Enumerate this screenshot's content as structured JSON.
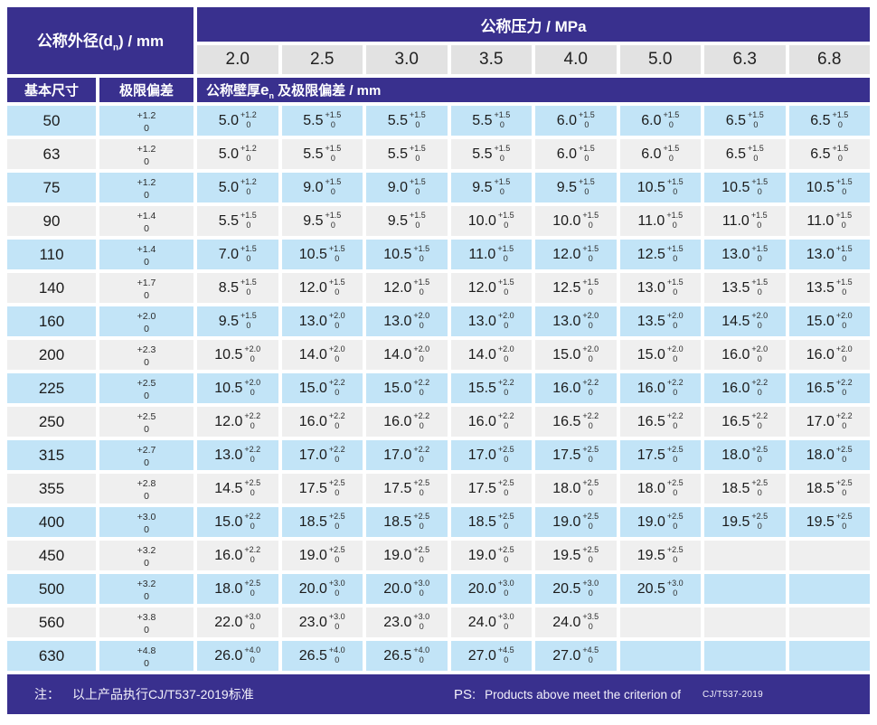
{
  "colors": {
    "header_bg": "#39308e",
    "row_blue": "#c2e4f7",
    "row_gray": "#efefef",
    "pressure_bg": "#e2e2e2"
  },
  "table": {
    "header": {
      "od_prefix": "公称外径(d",
      "od_sub": "n",
      "od_suffix": ") / mm",
      "pressure_title": "公称压力 / MPa",
      "pressures": [
        "2.0",
        "2.5",
        "3.0",
        "3.5",
        "4.0",
        "5.0",
        "6.3",
        "6.8"
      ],
      "basic_size": "基本尺寸",
      "limit_dev": "极限偏差",
      "wall_prefix": "公称壁厚",
      "wall_e": "e",
      "wall_sub": "n",
      "wall_suffix": " 及极限偏差 / mm"
    },
    "rows": [
      {
        "dn": "50",
        "dev_plus": "+1.2",
        "dev_zero": "0",
        "cells": [
          {
            "v": "5.0",
            "t": "+1.2",
            "b": "0"
          },
          {
            "v": "5.5",
            "t": "+1.5",
            "b": "0"
          },
          {
            "v": "5.5",
            "t": "+1.5",
            "b": "0"
          },
          {
            "v": "5.5",
            "t": "+1.5",
            "b": "0"
          },
          {
            "v": "6.0",
            "t": "+1.5",
            "b": "0"
          },
          {
            "v": "6.0",
            "t": "+1.5",
            "b": "0"
          },
          {
            "v": "6.5",
            "t": "+1.5",
            "b": "0"
          },
          {
            "v": "6.5",
            "t": "+1.5",
            "b": "0"
          }
        ]
      },
      {
        "dn": "63",
        "dev_plus": "+1.2",
        "dev_zero": "0",
        "cells": [
          {
            "v": "5.0",
            "t": "+1.2",
            "b": "0"
          },
          {
            "v": "5.5",
            "t": "+1.5",
            "b": "0"
          },
          {
            "v": "5.5",
            "t": "+1.5",
            "b": "0"
          },
          {
            "v": "5.5",
            "t": "+1.5",
            "b": "0"
          },
          {
            "v": "6.0",
            "t": "+1.5",
            "b": "0"
          },
          {
            "v": "6.0",
            "t": "+1.5",
            "b": "0"
          },
          {
            "v": "6.5",
            "t": "+1.5",
            "b": "0"
          },
          {
            "v": "6.5",
            "t": "+1.5",
            "b": "0"
          }
        ]
      },
      {
        "dn": "75",
        "dev_plus": "+1.2",
        "dev_zero": "0",
        "cells": [
          {
            "v": "5.0",
            "t": "+1.2",
            "b": "0"
          },
          {
            "v": "9.0",
            "t": "+1.5",
            "b": "0"
          },
          {
            "v": "9.0",
            "t": "+1.5",
            "b": "0"
          },
          {
            "v": "9.5",
            "t": "+1.5",
            "b": "0"
          },
          {
            "v": "9.5",
            "t": "+1.5",
            "b": "0"
          },
          {
            "v": "10.5",
            "t": "+1.5",
            "b": "0"
          },
          {
            "v": "10.5",
            "t": "+1.5",
            "b": "0"
          },
          {
            "v": "10.5",
            "t": "+1.5",
            "b": "0"
          }
        ]
      },
      {
        "dn": "90",
        "dev_plus": "+1.4",
        "dev_zero": "0",
        "cells": [
          {
            "v": "5.5",
            "t": "+1.5",
            "b": "0"
          },
          {
            "v": "9.5",
            "t": "+1.5",
            "b": "0"
          },
          {
            "v": "9.5",
            "t": "+1.5",
            "b": "0"
          },
          {
            "v": "10.0",
            "t": "+1.5",
            "b": "0"
          },
          {
            "v": "10.0",
            "t": "+1.5",
            "b": "0"
          },
          {
            "v": "11.0",
            "t": "+1.5",
            "b": "0"
          },
          {
            "v": "11.0",
            "t": "+1.5",
            "b": "0"
          },
          {
            "v": "11.0",
            "t": "+1.5",
            "b": "0"
          }
        ]
      },
      {
        "dn": "110",
        "dev_plus": "+1.4",
        "dev_zero": "0",
        "cells": [
          {
            "v": "7.0",
            "t": "+1.5",
            "b": "0"
          },
          {
            "v": "10.5",
            "t": "+1.5",
            "b": "0"
          },
          {
            "v": "10.5",
            "t": "+1.5",
            "b": "0"
          },
          {
            "v": "11.0",
            "t": "+1.5",
            "b": "0"
          },
          {
            "v": "12.0",
            "t": "+1.5",
            "b": "0"
          },
          {
            "v": "12.5",
            "t": "+1.5",
            "b": "0"
          },
          {
            "v": "13.0",
            "t": "+1.5",
            "b": "0"
          },
          {
            "v": "13.0",
            "t": "+1.5",
            "b": "0"
          }
        ]
      },
      {
        "dn": "140",
        "dev_plus": "+1.7",
        "dev_zero": "0",
        "cells": [
          {
            "v": "8.5",
            "t": "+1.5",
            "b": "0"
          },
          {
            "v": "12.0",
            "t": "+1.5",
            "b": "0"
          },
          {
            "v": "12.0",
            "t": "+1.5",
            "b": "0"
          },
          {
            "v": "12.0",
            "t": "+1.5",
            "b": "0"
          },
          {
            "v": "12.5",
            "t": "+1.5",
            "b": "0"
          },
          {
            "v": "13.0",
            "t": "+1.5",
            "b": "0"
          },
          {
            "v": "13.5",
            "t": "+1.5",
            "b": "0"
          },
          {
            "v": "13.5",
            "t": "+1.5",
            "b": "0"
          }
        ]
      },
      {
        "dn": "160",
        "dev_plus": "+2.0",
        "dev_zero": "0",
        "cells": [
          {
            "v": "9.5",
            "t": "+1.5",
            "b": "0"
          },
          {
            "v": "13.0",
            "t": "+2.0",
            "b": "0"
          },
          {
            "v": "13.0",
            "t": "+2.0",
            "b": "0"
          },
          {
            "v": "13.0",
            "t": "+2.0",
            "b": "0"
          },
          {
            "v": "13.0",
            "t": "+2.0",
            "b": "0"
          },
          {
            "v": "13.5",
            "t": "+2.0",
            "b": "0"
          },
          {
            "v": "14.5",
            "t": "+2.0",
            "b": "0"
          },
          {
            "v": "15.0",
            "t": "+2.0",
            "b": "0"
          }
        ]
      },
      {
        "dn": "200",
        "dev_plus": "+2.3",
        "dev_zero": "0",
        "cells": [
          {
            "v": "10.5",
            "t": "+2.0",
            "b": "0"
          },
          {
            "v": "14.0",
            "t": "+2.0",
            "b": "0"
          },
          {
            "v": "14.0",
            "t": "+2.0",
            "b": "0"
          },
          {
            "v": "14.0",
            "t": "+2.0",
            "b": "0"
          },
          {
            "v": "15.0",
            "t": "+2.0",
            "b": "0"
          },
          {
            "v": "15.0",
            "t": "+2.0",
            "b": "0"
          },
          {
            "v": "16.0",
            "t": "+2.0",
            "b": "0"
          },
          {
            "v": "16.0",
            "t": "+2.0",
            "b": "0"
          }
        ]
      },
      {
        "dn": "225",
        "dev_plus": "+2.5",
        "dev_zero": "0",
        "cells": [
          {
            "v": "10.5",
            "t": "+2.0",
            "b": "0"
          },
          {
            "v": "15.0",
            "t": "+2.2",
            "b": "0"
          },
          {
            "v": "15.0",
            "t": "+2.2",
            "b": "0"
          },
          {
            "v": "15.5",
            "t": "+2.2",
            "b": "0"
          },
          {
            "v": "16.0",
            "t": "+2.2",
            "b": "0"
          },
          {
            "v": "16.0",
            "t": "+2.2",
            "b": "0"
          },
          {
            "v": "16.0",
            "t": "+2.2",
            "b": "0"
          },
          {
            "v": "16.5",
            "t": "+2.2",
            "b": "0"
          }
        ]
      },
      {
        "dn": "250",
        "dev_plus": "+2.5",
        "dev_zero": "0",
        "cells": [
          {
            "v": "12.0",
            "t": "+2.2",
            "b": "0"
          },
          {
            "v": "16.0",
            "t": "+2.2",
            "b": "0"
          },
          {
            "v": "16.0",
            "t": "+2.2",
            "b": "0"
          },
          {
            "v": "16.0",
            "t": "+2.2",
            "b": "0"
          },
          {
            "v": "16.5",
            "t": "+2.2",
            "b": "0"
          },
          {
            "v": "16.5",
            "t": "+2.2",
            "b": "0"
          },
          {
            "v": "16.5",
            "t": "+2.2",
            "b": "0"
          },
          {
            "v": "17.0",
            "t": "+2.2",
            "b": "0"
          }
        ]
      },
      {
        "dn": "315",
        "dev_plus": "+2.7",
        "dev_zero": "0",
        "cells": [
          {
            "v": "13.0",
            "t": "+2.2",
            "b": "0"
          },
          {
            "v": "17.0",
            "t": "+2.2",
            "b": "0"
          },
          {
            "v": "17.0",
            "t": "+2.2",
            "b": "0"
          },
          {
            "v": "17.0",
            "t": "+2.5",
            "b": "0"
          },
          {
            "v": "17.5",
            "t": "+2.5",
            "b": "0"
          },
          {
            "v": "17.5",
            "t": "+2.5",
            "b": "0"
          },
          {
            "v": "18.0",
            "t": "+2.5",
            "b": "0"
          },
          {
            "v": "18.0",
            "t": "+2.5",
            "b": "0"
          }
        ]
      },
      {
        "dn": "355",
        "dev_plus": "+2.8",
        "dev_zero": "0",
        "cells": [
          {
            "v": "14.5",
            "t": "+2.5",
            "b": "0"
          },
          {
            "v": "17.5",
            "t": "+2.5",
            "b": "0"
          },
          {
            "v": "17.5",
            "t": "+2.5",
            "b": "0"
          },
          {
            "v": "17.5",
            "t": "+2.5",
            "b": "0"
          },
          {
            "v": "18.0",
            "t": "+2.5",
            "b": "0"
          },
          {
            "v": "18.0",
            "t": "+2.5",
            "b": "0"
          },
          {
            "v": "18.5",
            "t": "+2.5",
            "b": "0"
          },
          {
            "v": "18.5",
            "t": "+2.5",
            "b": "0"
          }
        ]
      },
      {
        "dn": "400",
        "dev_plus": "+3.0",
        "dev_zero": "0",
        "cells": [
          {
            "v": "15.0",
            "t": "+2.2",
            "b": "0"
          },
          {
            "v": "18.5",
            "t": "+2.5",
            "b": "0"
          },
          {
            "v": "18.5",
            "t": "+2.5",
            "b": "0"
          },
          {
            "v": "18.5",
            "t": "+2.5",
            "b": "0"
          },
          {
            "v": "19.0",
            "t": "+2.5",
            "b": "0"
          },
          {
            "v": "19.0",
            "t": "+2.5",
            "b": "0"
          },
          {
            "v": "19.5",
            "t": "+2.5",
            "b": "0"
          },
          {
            "v": "19.5",
            "t": "+2.5",
            "b": "0"
          }
        ]
      },
      {
        "dn": "450",
        "dev_plus": "+3.2",
        "dev_zero": "0",
        "cells": [
          {
            "v": "16.0",
            "t": "+2.2",
            "b": "0"
          },
          {
            "v": "19.0",
            "t": "+2.5",
            "b": "0"
          },
          {
            "v": "19.0",
            "t": "+2.5",
            "b": "0"
          },
          {
            "v": "19.0",
            "t": "+2.5",
            "b": "0"
          },
          {
            "v": "19.5",
            "t": "+2.5",
            "b": "0"
          },
          {
            "v": "19.5",
            "t": "+2.5",
            "b": "0"
          },
          null,
          null
        ]
      },
      {
        "dn": "500",
        "dev_plus": "+3.2",
        "dev_zero": "0",
        "cells": [
          {
            "v": "18.0",
            "t": "+2.5",
            "b": "0"
          },
          {
            "v": "20.0",
            "t": "+3.0",
            "b": "0"
          },
          {
            "v": "20.0",
            "t": "+3.0",
            "b": "0"
          },
          {
            "v": "20.0",
            "t": "+3.0",
            "b": "0"
          },
          {
            "v": "20.5",
            "t": "+3.0",
            "b": "0"
          },
          {
            "v": "20.5",
            "t": "+3.0",
            "b": "0"
          },
          null,
          null
        ]
      },
      {
        "dn": "560",
        "dev_plus": "+3.8",
        "dev_zero": "0",
        "cells": [
          {
            "v": "22.0",
            "t": "+3.0",
            "b": "0"
          },
          {
            "v": "23.0",
            "t": "+3.0",
            "b": "0"
          },
          {
            "v": "23.0",
            "t": "+3.0",
            "b": "0"
          },
          {
            "v": "24.0",
            "t": "+3.0",
            "b": "0"
          },
          {
            "v": "24.0",
            "t": "+3.5",
            "b": "0"
          },
          null,
          null,
          null
        ]
      },
      {
        "dn": "630",
        "dev_plus": "+4.8",
        "dev_zero": "0",
        "cells": [
          {
            "v": "26.0",
            "t": "+4.0",
            "b": "0"
          },
          {
            "v": "26.5",
            "t": "+4.0",
            "b": "0"
          },
          {
            "v": "26.5",
            "t": "+4.0",
            "b": "0"
          },
          {
            "v": "27.0",
            "t": "+4.5",
            "b": "0"
          },
          {
            "v": "27.0",
            "t": "+4.5",
            "b": "0"
          },
          null,
          null,
          null
        ]
      }
    ]
  },
  "footer": {
    "note_label": "注：",
    "note_text": "以上产品执行CJ/T537-2019标准",
    "ps_label": "PS:",
    "ps_text": "Products above meet the criterion of",
    "ps_standard": "CJ/T537-2019"
  }
}
